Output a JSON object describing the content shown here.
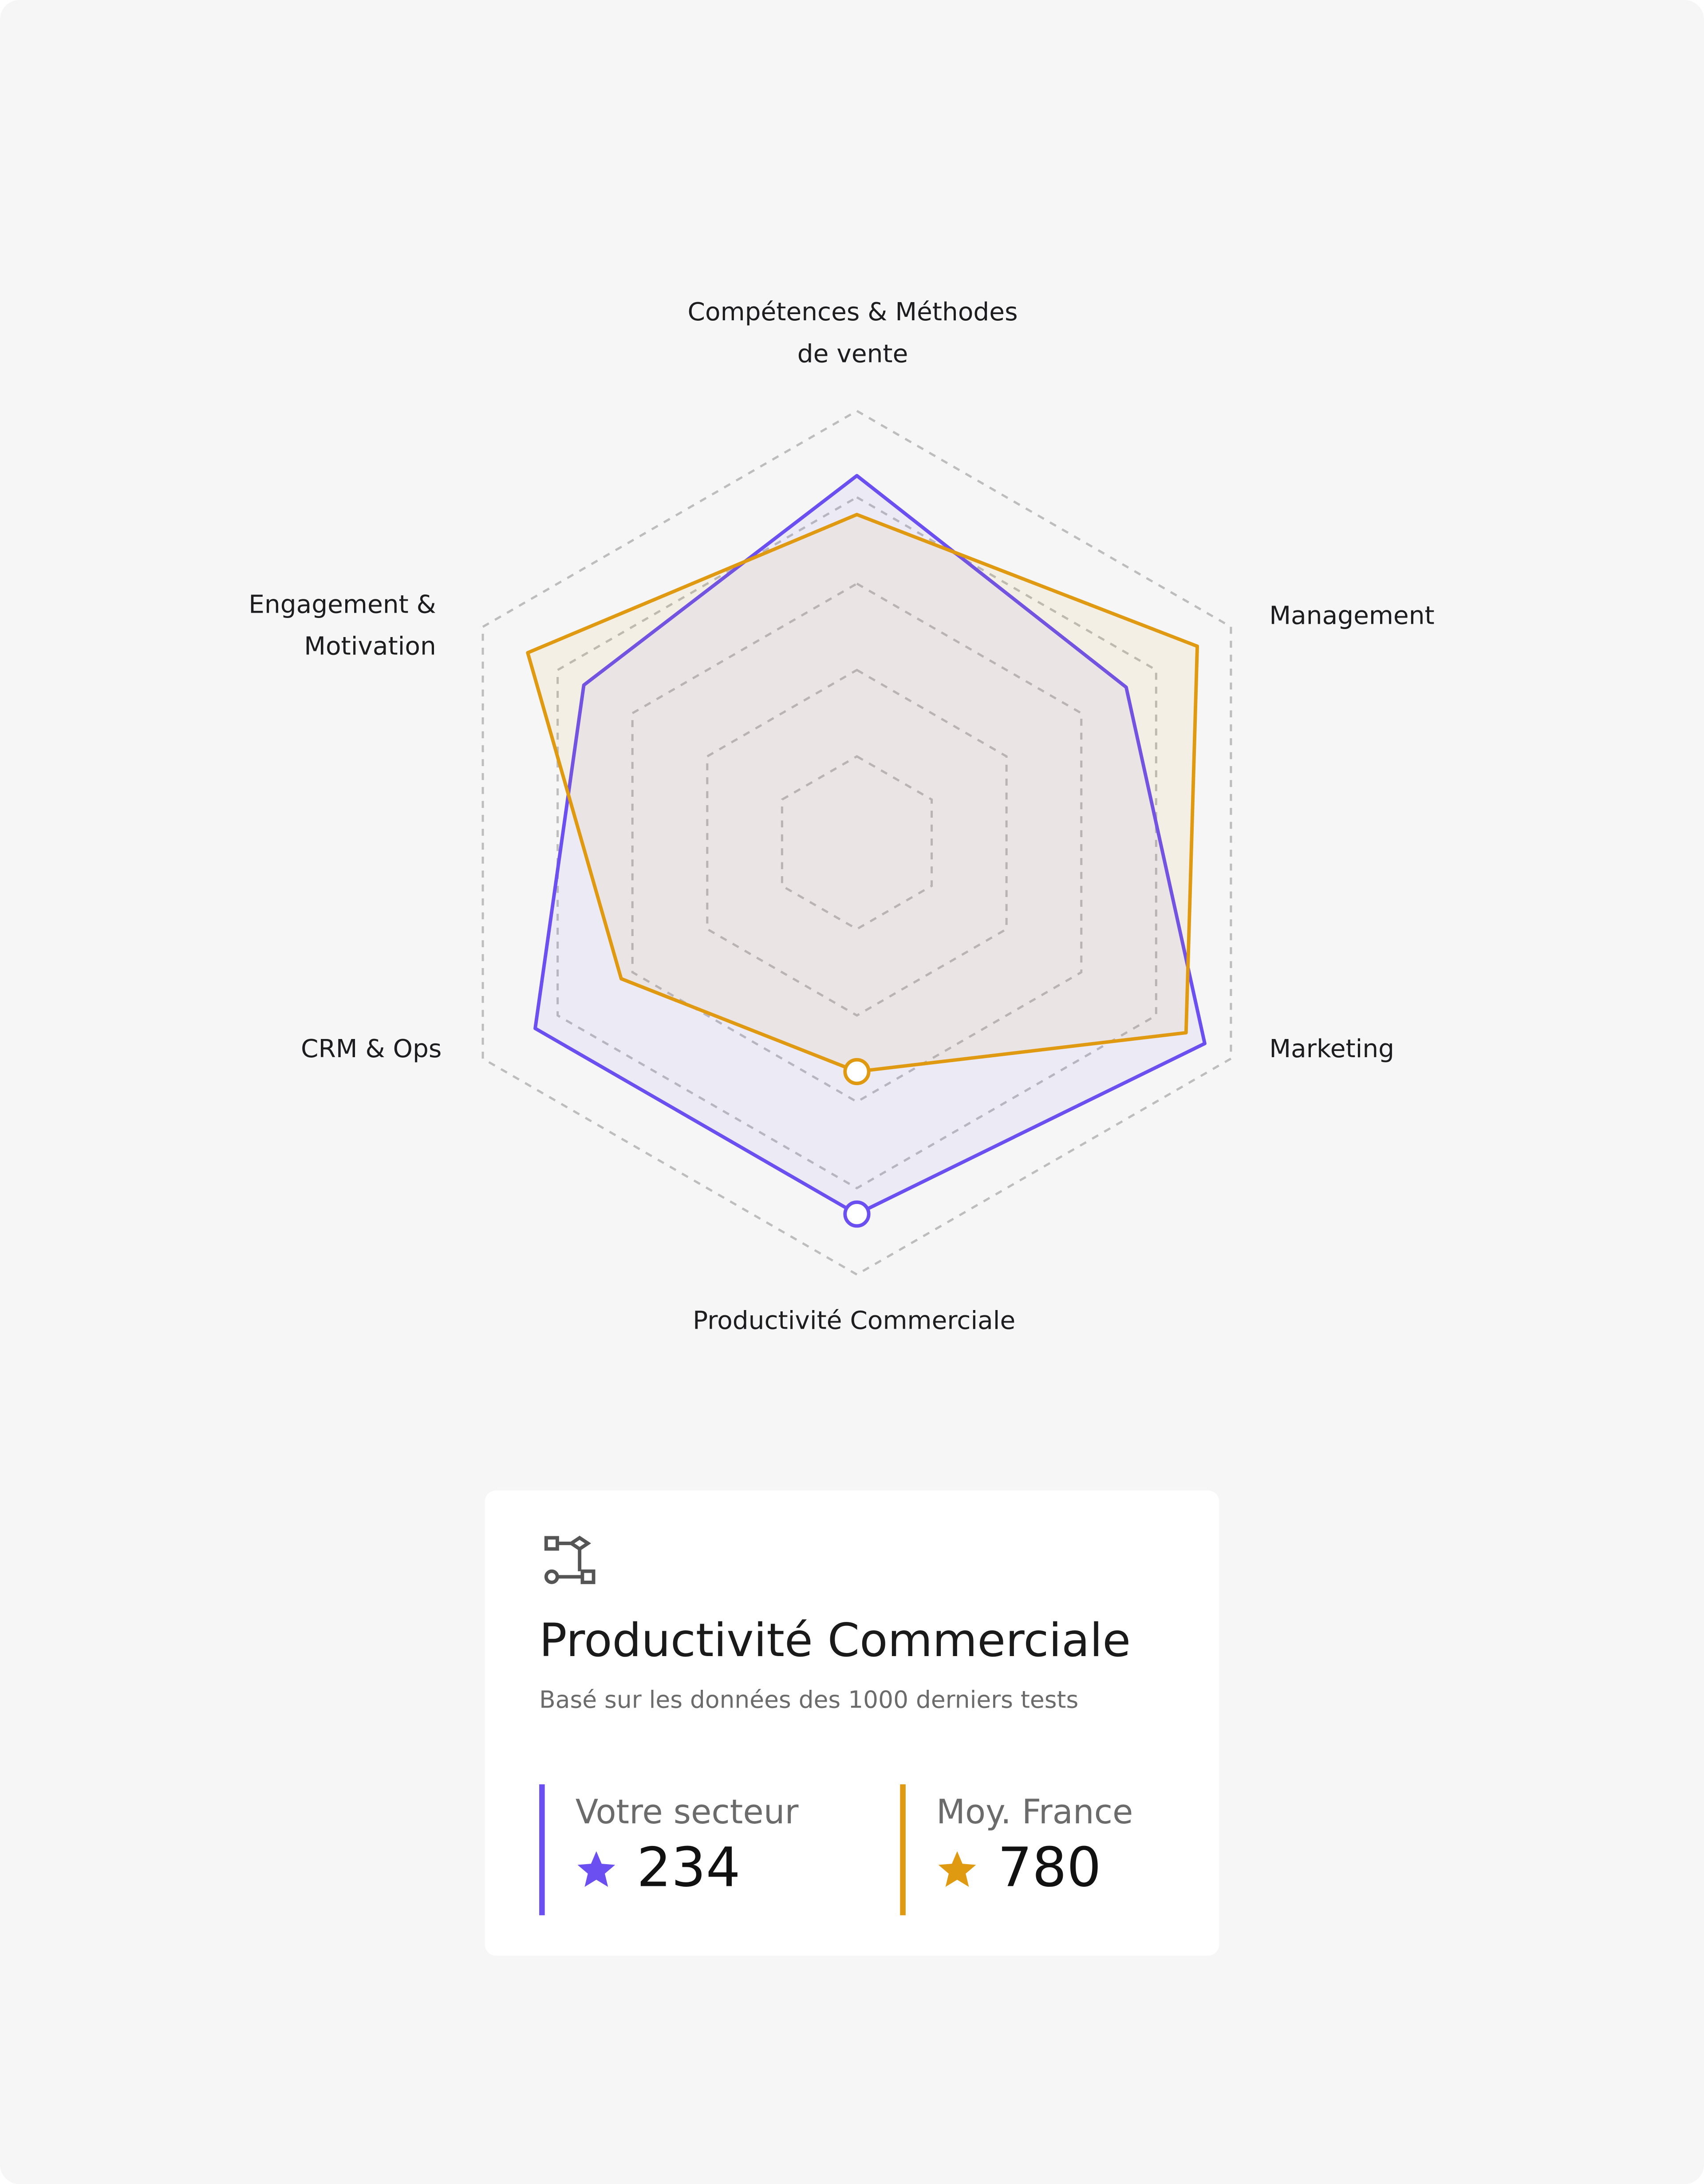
{
  "chart_data": {
    "type": "radar",
    "categories": [
      "Compétences & Méthodes de vente",
      "Management",
      "Marketing",
      "Productivité Commerciale",
      "CRM & Ops",
      "Engagement & Motivation"
    ],
    "series": [
      {
        "name": "Votre secteur",
        "color": "#6b4ff0",
        "values": [
          85,
          72,
          93,
          86,
          86,
          73
        ]
      },
      {
        "name": "Moy. France",
        "color": "#e09a12",
        "values": [
          76,
          91,
          88,
          53,
          63,
          88
        ]
      }
    ],
    "ylim": [
      0,
      100
    ],
    "yticks": [
      20,
      40,
      60,
      80,
      100
    ],
    "grid": true
  },
  "card": {
    "title": "Productivité Commerciale",
    "subtitle": "Basé sur les données des 1000 derniers tests",
    "values": [
      234,
      780
    ]
  }
}
